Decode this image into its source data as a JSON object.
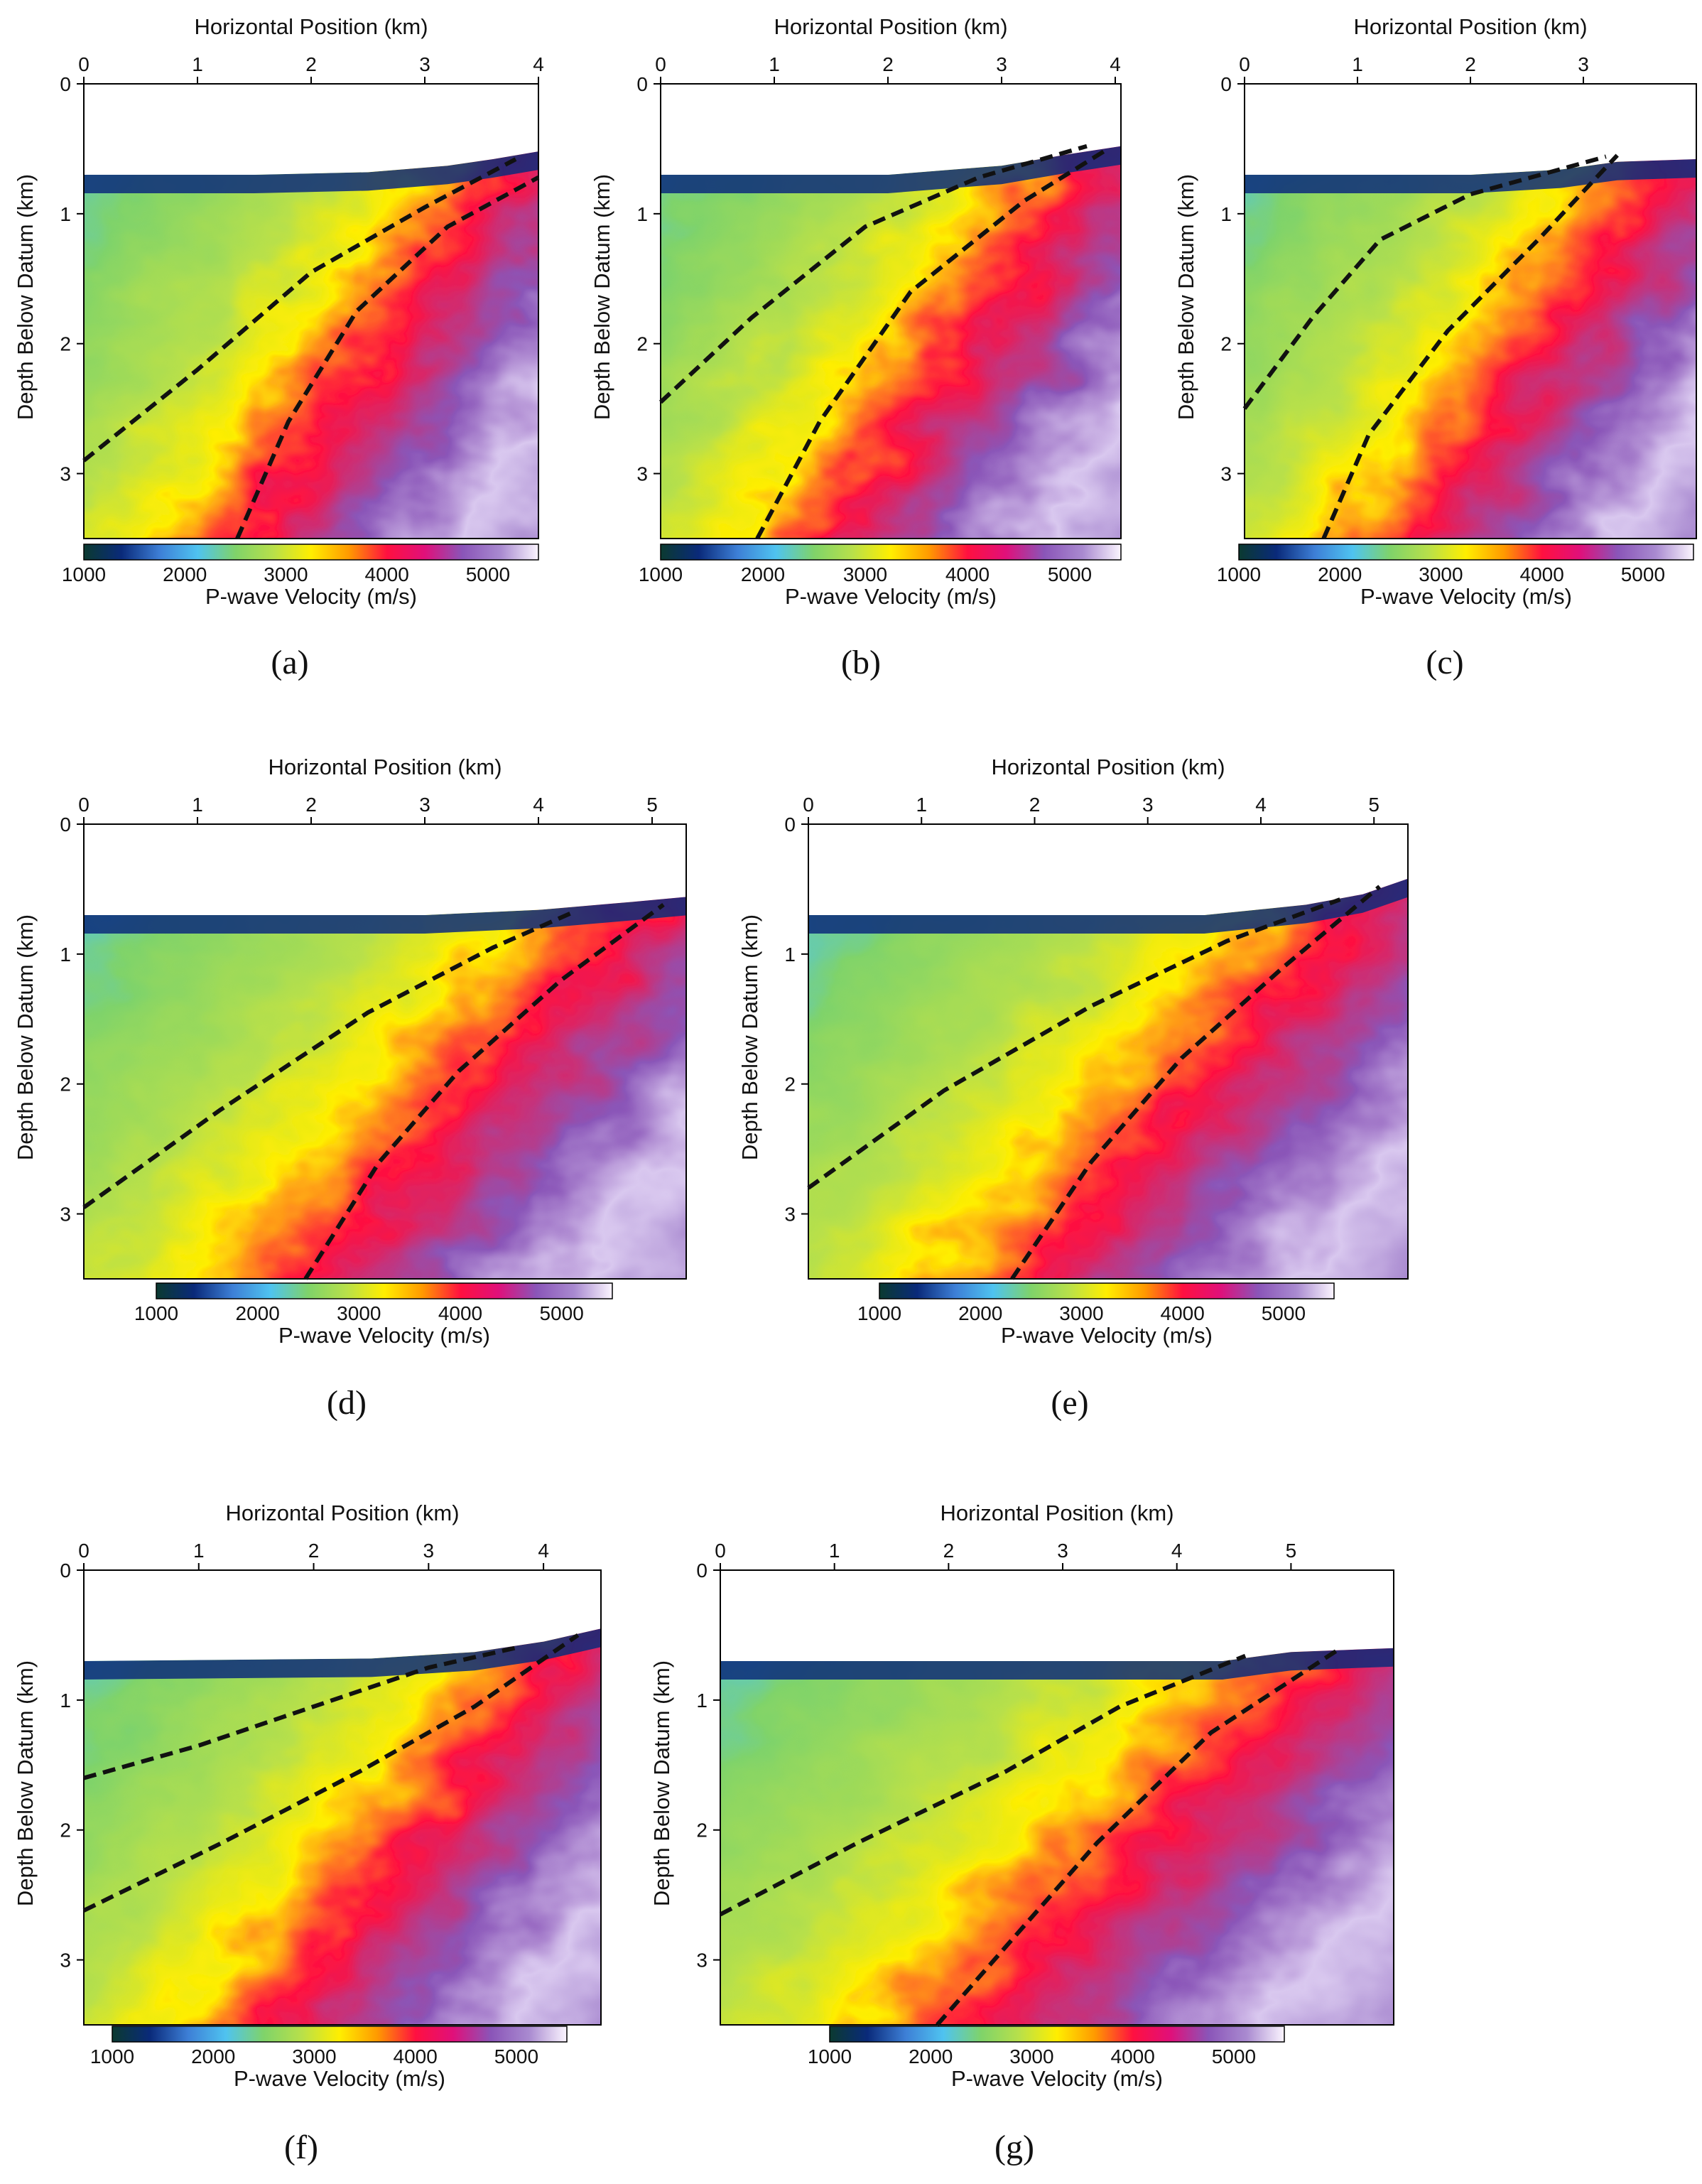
{
  "colorbar": {
    "label": "P-wave Velocity (m/s)",
    "ticks": [
      1000,
      2000,
      3000,
      4000,
      5000
    ],
    "range": [
      1000,
      5500
    ],
    "colors": [
      "#0b3a30",
      "#0a2a7a",
      "#3d7fd6",
      "#4fc3f0",
      "#7fd36a",
      "#b8e04a",
      "#ffee00",
      "#ff9a00",
      "#ff1040",
      "#e0107a",
      "#8a55b8",
      "#a98ad0",
      "#fbf5ff"
    ]
  },
  "chart_data": [
    {
      "id": "a",
      "type": "heatmap",
      "panel_label": "(a)",
      "xlabel": "Horizontal Position (km)",
      "ylabel": "Depth Below Datum (km)",
      "x_ticks": [
        0,
        1,
        2,
        3,
        4
      ],
      "y_ticks": [
        0,
        1,
        2,
        3
      ],
      "xlim": [
        0,
        4.0
      ],
      "ylim": [
        3.5,
        0
      ],
      "surface": [
        [
          0,
          0.7
        ],
        [
          1.5,
          0.7
        ],
        [
          2.5,
          0.68
        ],
        [
          3.2,
          0.63
        ],
        [
          3.6,
          0.58
        ],
        [
          4.0,
          0.52
        ]
      ],
      "faults": [
        [
          [
            0,
            2.9
          ],
          [
            1.0,
            2.2
          ],
          [
            2.0,
            1.45
          ],
          [
            3.0,
            0.95
          ],
          [
            3.8,
            0.58
          ]
        ],
        [
          [
            1.35,
            3.5
          ],
          [
            1.8,
            2.6
          ],
          [
            2.4,
            1.75
          ],
          [
            3.2,
            1.1
          ],
          [
            4.0,
            0.72
          ]
        ]
      ]
    },
    {
      "id": "b",
      "type": "heatmap",
      "panel_label": "(b)",
      "xlabel": "Horizontal Position (km)",
      "ylabel": "Depth Below Datum (km)",
      "x_ticks": [
        0,
        1,
        2,
        3,
        4
      ],
      "y_ticks": [
        0,
        1,
        2,
        3
      ],
      "xlim": [
        0,
        4.05
      ],
      "ylim": [
        3.5,
        0
      ],
      "surface": [
        [
          0,
          0.7
        ],
        [
          2.0,
          0.7
        ],
        [
          3.0,
          0.63
        ],
        [
          3.6,
          0.54
        ],
        [
          4.05,
          0.48
        ]
      ],
      "faults": [
        [
          [
            0,
            2.45
          ],
          [
            0.8,
            1.8
          ],
          [
            1.8,
            1.1
          ],
          [
            2.8,
            0.72
          ],
          [
            3.75,
            0.48
          ]
        ],
        [
          [
            0.85,
            3.5
          ],
          [
            1.4,
            2.6
          ],
          [
            2.2,
            1.6
          ],
          [
            3.2,
            0.9
          ],
          [
            3.9,
            0.52
          ]
        ]
      ]
    },
    {
      "id": "c",
      "type": "heatmap",
      "panel_label": "(c)",
      "xlabel": "Horizontal Position (km)",
      "ylabel": "Depth Below Datum (km)",
      "x_ticks": [
        0,
        1,
        2,
        3
      ],
      "y_ticks": [
        0,
        1,
        2,
        3
      ],
      "xlim": [
        0,
        4.0
      ],
      "ylim": [
        3.5,
        0
      ],
      "surface": [
        [
          0,
          0.7
        ],
        [
          2.0,
          0.7
        ],
        [
          2.8,
          0.66
        ],
        [
          3.3,
          0.6
        ],
        [
          4.0,
          0.58
        ]
      ],
      "faults": [
        [
          [
            0,
            2.5
          ],
          [
            0.6,
            1.8
          ],
          [
            1.2,
            1.2
          ],
          [
            2.0,
            0.85
          ],
          [
            3.2,
            0.56
          ]
        ],
        [
          [
            0.7,
            3.5
          ],
          [
            1.1,
            2.7
          ],
          [
            1.8,
            1.9
          ],
          [
            2.6,
            1.2
          ],
          [
            3.3,
            0.55
          ]
        ]
      ]
    },
    {
      "id": "d",
      "type": "heatmap",
      "panel_label": "(d)",
      "xlabel": "Horizontal Position (km)",
      "ylabel": "Depth Below Datum (km)",
      "x_ticks": [
        0,
        1,
        2,
        3,
        4,
        5
      ],
      "y_ticks": [
        0,
        1,
        2,
        3
      ],
      "xlim": [
        0,
        5.3
      ],
      "ylim": [
        3.5,
        0
      ],
      "surface": [
        [
          0,
          0.7
        ],
        [
          3.0,
          0.7
        ],
        [
          4.0,
          0.66
        ],
        [
          4.8,
          0.6
        ],
        [
          5.3,
          0.56
        ]
      ],
      "faults": [
        [
          [
            0,
            2.95
          ],
          [
            1.2,
            2.2
          ],
          [
            2.5,
            1.45
          ],
          [
            3.6,
            0.95
          ],
          [
            4.3,
            0.68
          ]
        ],
        [
          [
            1.95,
            3.5
          ],
          [
            2.6,
            2.6
          ],
          [
            3.3,
            1.9
          ],
          [
            4.2,
            1.2
          ],
          [
            5.1,
            0.62
          ]
        ]
      ]
    },
    {
      "id": "e",
      "type": "heatmap",
      "panel_label": "(e)",
      "xlabel": "Horizontal Position (km)",
      "ylabel": "Depth Below Datum (km)",
      "x_ticks": [
        0,
        1,
        2,
        3,
        4,
        5
      ],
      "y_ticks": [
        0,
        1,
        2,
        3
      ],
      "xlim": [
        0,
        5.3
      ],
      "ylim": [
        3.5,
        0
      ],
      "surface": [
        [
          0,
          0.7
        ],
        [
          3.5,
          0.7
        ],
        [
          4.4,
          0.62
        ],
        [
          4.9,
          0.54
        ],
        [
          5.3,
          0.42
        ]
      ],
      "faults": [
        [
          [
            0,
            2.8
          ],
          [
            1.2,
            2.05
          ],
          [
            2.5,
            1.4
          ],
          [
            3.7,
            0.9
          ],
          [
            4.7,
            0.58
          ]
        ],
        [
          [
            1.8,
            3.5
          ],
          [
            2.5,
            2.6
          ],
          [
            3.3,
            1.8
          ],
          [
            4.2,
            1.1
          ],
          [
            5.05,
            0.48
          ]
        ]
      ]
    },
    {
      "id": "f",
      "type": "heatmap",
      "panel_label": "(f)",
      "xlabel": "Horizontal Position (km)",
      "ylabel": "Depth Below Datum (km)",
      "x_ticks": [
        0,
        1,
        2,
        3,
        4
      ],
      "y_ticks": [
        0,
        1,
        2,
        3
      ],
      "xlim": [
        0,
        4.5
      ],
      "ylim": [
        3.5,
        0
      ],
      "surface": [
        [
          0,
          0.7
        ],
        [
          2.5,
          0.68
        ],
        [
          3.4,
          0.63
        ],
        [
          4.0,
          0.55
        ],
        [
          4.5,
          0.45
        ]
      ],
      "faults": [
        [
          [
            0,
            1.6
          ],
          [
            1.0,
            1.35
          ],
          [
            2.0,
            1.05
          ],
          [
            3.0,
            0.75
          ],
          [
            3.75,
            0.6
          ]
        ],
        [
          [
            0,
            2.62
          ],
          [
            1.2,
            2.1
          ],
          [
            2.4,
            1.55
          ],
          [
            3.4,
            1.05
          ],
          [
            4.3,
            0.5
          ]
        ]
      ]
    },
    {
      "id": "g",
      "type": "heatmap",
      "panel_label": "(g)",
      "xlabel": "Horizontal Position (km)",
      "ylabel": "Depth Below Datum (km)",
      "x_ticks": [
        0,
        1,
        2,
        3,
        4,
        5
      ],
      "y_ticks": [
        0,
        1,
        2,
        3
      ],
      "xlim": [
        0,
        5.9
      ],
      "ylim": [
        3.5,
        0
      ],
      "surface": [
        [
          0,
          0.7
        ],
        [
          4.4,
          0.7
        ],
        [
          5.0,
          0.63
        ],
        [
          5.9,
          0.6
        ]
      ],
      "faults": [
        [
          [
            0,
            2.65
          ],
          [
            1.2,
            2.1
          ],
          [
            2.5,
            1.55
          ],
          [
            3.5,
            1.05
          ],
          [
            4.6,
            0.66
          ]
        ],
        [
          [
            1.9,
            3.5
          ],
          [
            2.5,
            2.9
          ],
          [
            3.3,
            2.1
          ],
          [
            4.3,
            1.25
          ],
          [
            5.4,
            0.62
          ]
        ]
      ]
    }
  ]
}
